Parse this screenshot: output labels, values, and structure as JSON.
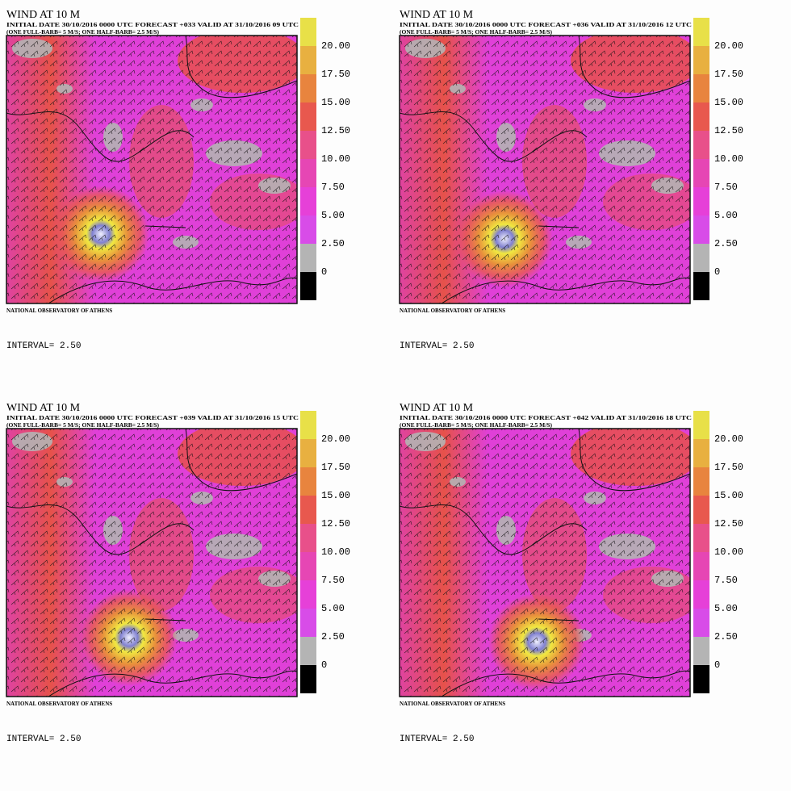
{
  "panels": [
    {
      "title": "WIND AT 10 M",
      "header": "INITIAL DATE 30/10/2016   0000 UTC  FORECAST +033 VALID AT  31/10/2016  09 UTC",
      "barb_note": "(ONE FULL-BARB= 5 M/S; ONE HALF-BARB= 2.5 M/S)",
      "credit": "NATIONAL OBSERVATORY OF ATHENS",
      "interval": "INTERVAL=  2.50"
    },
    {
      "title": "WIND AT 10 M",
      "header": "INITIAL DATE 30/10/2016   0000 UTC  FORECAST +036 VALID AT  31/10/2016  12 UTC",
      "barb_note": "(ONE FULL-BARB= 5 M/S; ONE HALF-BARB= 2.5 M/S)",
      "credit": "NATIONAL OBSERVATORY OF ATHENS",
      "interval": "INTERVAL=  2.50"
    },
    {
      "title": "WIND AT 10 M",
      "header": "INITIAL DATE 30/10/2016   0000 UTC  FORECAST +039 VALID AT  31/10/2016  15 UTC",
      "barb_note": "(ONE FULL-BARB= 5 M/S; ONE HALF-BARB= 2.5 M/S)",
      "credit": "NATIONAL OBSERVATORY OF ATHENS",
      "interval": "INTERVAL=  2.50"
    },
    {
      "title": "WIND AT 10 M",
      "header": "INITIAL DATE 30/10/2016   0000 UTC  FORECAST +042 VALID AT  31/10/2016  18 UTC",
      "barb_note": "(ONE FULL-BARB= 5 M/S; ONE HALF-BARB= 2.5 M/S)",
      "credit": "NATIONAL OBSERVATORY OF ATHENS",
      "interval": "INTERVAL=  2.50"
    }
  ],
  "colorbar": {
    "labels": [
      "0",
      "2.50",
      "5.00",
      "7.50",
      "10.00",
      "12.50",
      "15.00",
      "17.50",
      "20.00"
    ],
    "colors": [
      "#000000",
      "#b4b4b4",
      "#d84ce8",
      "#e640d8",
      "#e646b4",
      "#e8508a",
      "#e8584e",
      "#e8843e",
      "#e8b040",
      "#e8e048"
    ]
  }
}
